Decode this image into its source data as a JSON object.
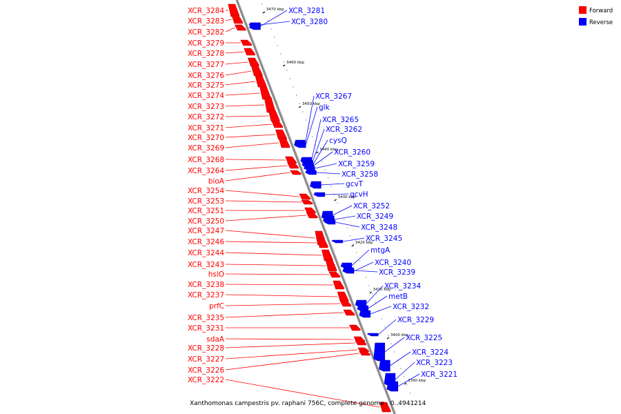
{
  "legend": {
    "forward": {
      "label": "Forward",
      "color": "#ff0000"
    },
    "reverse": {
      "label": "Reverse",
      "color": "#0000ff"
    }
  },
  "caption": "Xanthomonas campestris pv. raphani 756C, complete genome - 0..4941214",
  "ruler": [
    "3470 kbp",
    "3460 kbp",
    "3450 kbp",
    "3440 kbp",
    "3430 kbp",
    "3420 kbp",
    "3410 kbp",
    "3400 kbp",
    "3390 kbp"
  ],
  "forward_genes": [
    "XCR_3284",
    "XCR_3283",
    "XCR_3282",
    "XCR_3279",
    "XCR_3278",
    "XCR_3277",
    "XCR_3276",
    "XCR_3275",
    "XCR_3274",
    "XCR_3273",
    "XCR_3272",
    "XCR_3271",
    "XCR_3270",
    "XCR_3269",
    "XCR_3268",
    "XCR_3264",
    "bioA",
    "XCR_3254",
    "XCR_3253",
    "XCR_3251",
    "XCR_3250",
    "XCR_3247",
    "XCR_3246",
    "XCR_3244",
    "XCR_3243",
    "hslO",
    "XCR_3238",
    "XCR_3237",
    "prfC",
    "XCR_3235",
    "XCR_3231",
    "sdaA",
    "XCR_3228",
    "XCR_3227",
    "XCR_3226",
    "XCR_3222"
  ],
  "reverse_genes": [
    "XCR_3281",
    "XCR_3280",
    "XCR_3267",
    "glk",
    "XCR_3265",
    "XCR_3262",
    "cysQ",
    "XCR_3260",
    "XCR_3259",
    "XCR_3258",
    "gcvT",
    "gcvH",
    "XCR_3252",
    "XCR_3249",
    "XCR_3248",
    "XCR_3245",
    "mtgA",
    "XCR_3240",
    "XCR_3239",
    "XCR_3234",
    "metB",
    "XCR_3232",
    "XCR_3229",
    "XCR_3225",
    "XCR_3224",
    "XCR_3223",
    "XCR_3221"
  ]
}
